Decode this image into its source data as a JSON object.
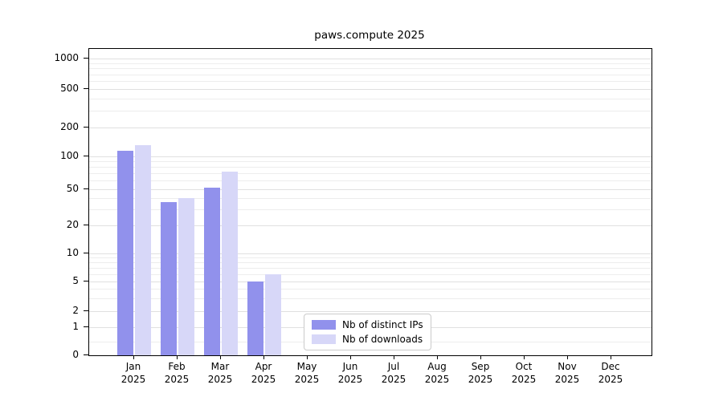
{
  "chart_data": {
    "type": "bar",
    "title": "paws.compute 2025",
    "yscale": "symlog",
    "grid": true,
    "ylim": [
      0,
      1000
    ],
    "yticks": [
      0,
      1,
      2,
      5,
      10,
      20,
      50,
      100,
      200,
      500,
      1000
    ],
    "categories": [
      "Jan",
      "Feb",
      "Mar",
      "Apr",
      "May",
      "Jun",
      "Jul",
      "Aug",
      "Sep",
      "Oct",
      "Nov",
      "Dec"
    ],
    "category_year": "2025",
    "series": [
      {
        "name": "Nb of distinct IPs",
        "color": "#9191ec",
        "values": [
          115,
          36,
          52,
          5,
          0,
          0,
          0,
          0,
          0,
          0,
          0,
          0
        ]
      },
      {
        "name": "Nb of downloads",
        "color": "#d7d7f8",
        "values": [
          130,
          40,
          73,
          6,
          0,
          0,
          0,
          0,
          0,
          0,
          0,
          0
        ]
      }
    ],
    "legend_position": "bottom-center"
  }
}
